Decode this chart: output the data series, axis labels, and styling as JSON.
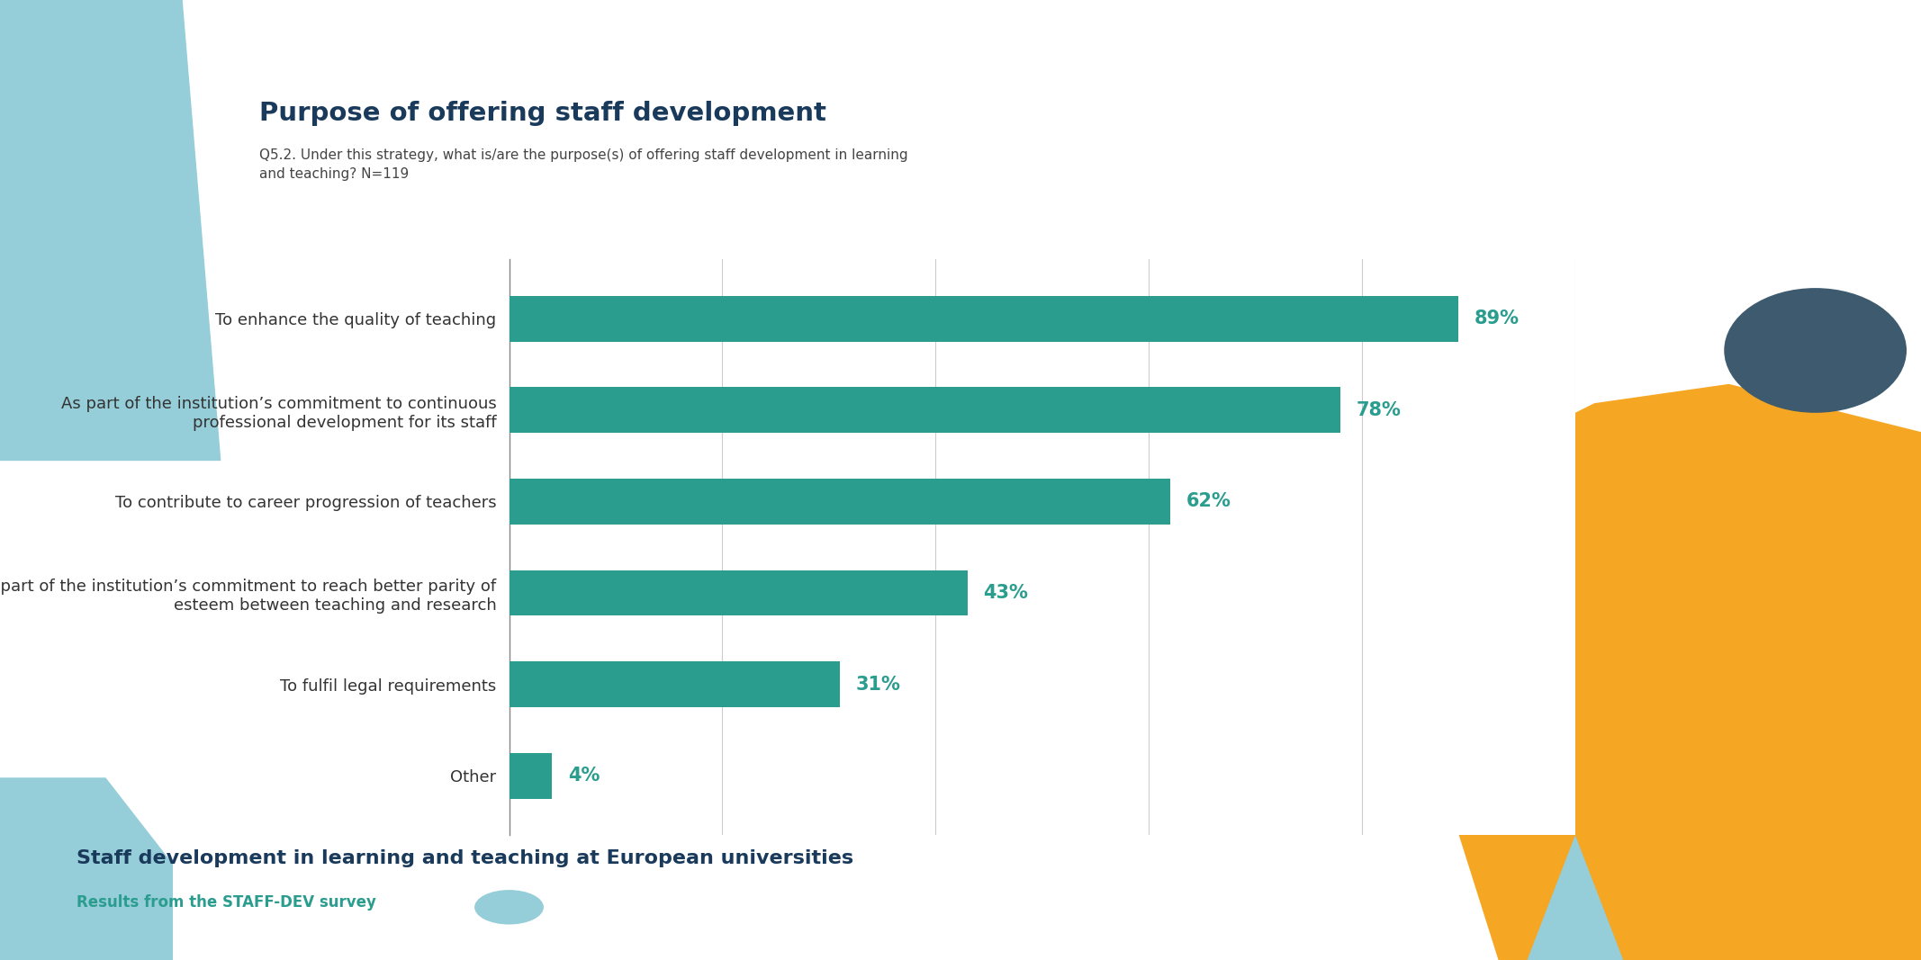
{
  "title": "Purpose of offering staff development",
  "subtitle": "Q5.2. Under this strategy, what is/are the purpose(s) of offering staff development in learning\nand teaching? N=119",
  "categories": [
    "To enhance the quality of teaching",
    "As part of the institution’s commitment to continuous\nprofessional development for its staff",
    "To contribute to career progression of teachers",
    "As part of the institution’s commitment to reach better parity of\nesteem between teaching and research",
    "To fulfil legal requirements",
    "Other"
  ],
  "values": [
    89,
    78,
    62,
    43,
    31,
    4
  ],
  "bar_color": "#2a9d8f",
  "bar_label_color": "#2a9d8f",
  "title_color": "#1a3a5c",
  "subtitle_color": "#444444",
  "label_color": "#333333",
  "footer_title": "Staff development in learning and teaching at European universities",
  "footer_subtitle": "Results from the STAFF-DEV survey",
  "footer_title_color": "#1a3a5c",
  "footer_subtitle_color": "#2a9d8f",
  "bg_color": "#ffffff",
  "deco_light_blue": "#95cdd8",
  "deco_orange": "#f5a623",
  "deco_dark_blue": "#3d5a6e",
  "xlim": [
    0,
    100
  ],
  "grid_color": "#cccccc",
  "bar_height": 0.5
}
